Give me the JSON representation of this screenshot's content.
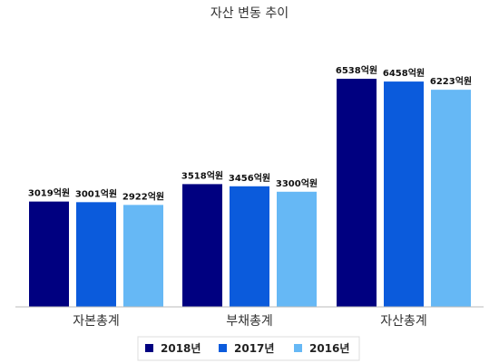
{
  "chart_data": {
    "type": "bar",
    "title": "자산 변동 추이",
    "categories": [
      "자본총계",
      "부채총계",
      "자산총계"
    ],
    "unit_suffix": "억원",
    "ylim": [
      0,
      7500
    ],
    "grid": false,
    "legend_position": "bottom",
    "series": [
      {
        "name": "2018년",
        "color": "#000080",
        "values": [
          3019,
          3518,
          6538
        ]
      },
      {
        "name": "2017년",
        "color": "#0b5bdc",
        "values": [
          3001,
          3456,
          6458
        ]
      },
      {
        "name": "2016년",
        "color": "#66b8f5",
        "values": [
          2922,
          3300,
          6223
        ]
      }
    ]
  }
}
